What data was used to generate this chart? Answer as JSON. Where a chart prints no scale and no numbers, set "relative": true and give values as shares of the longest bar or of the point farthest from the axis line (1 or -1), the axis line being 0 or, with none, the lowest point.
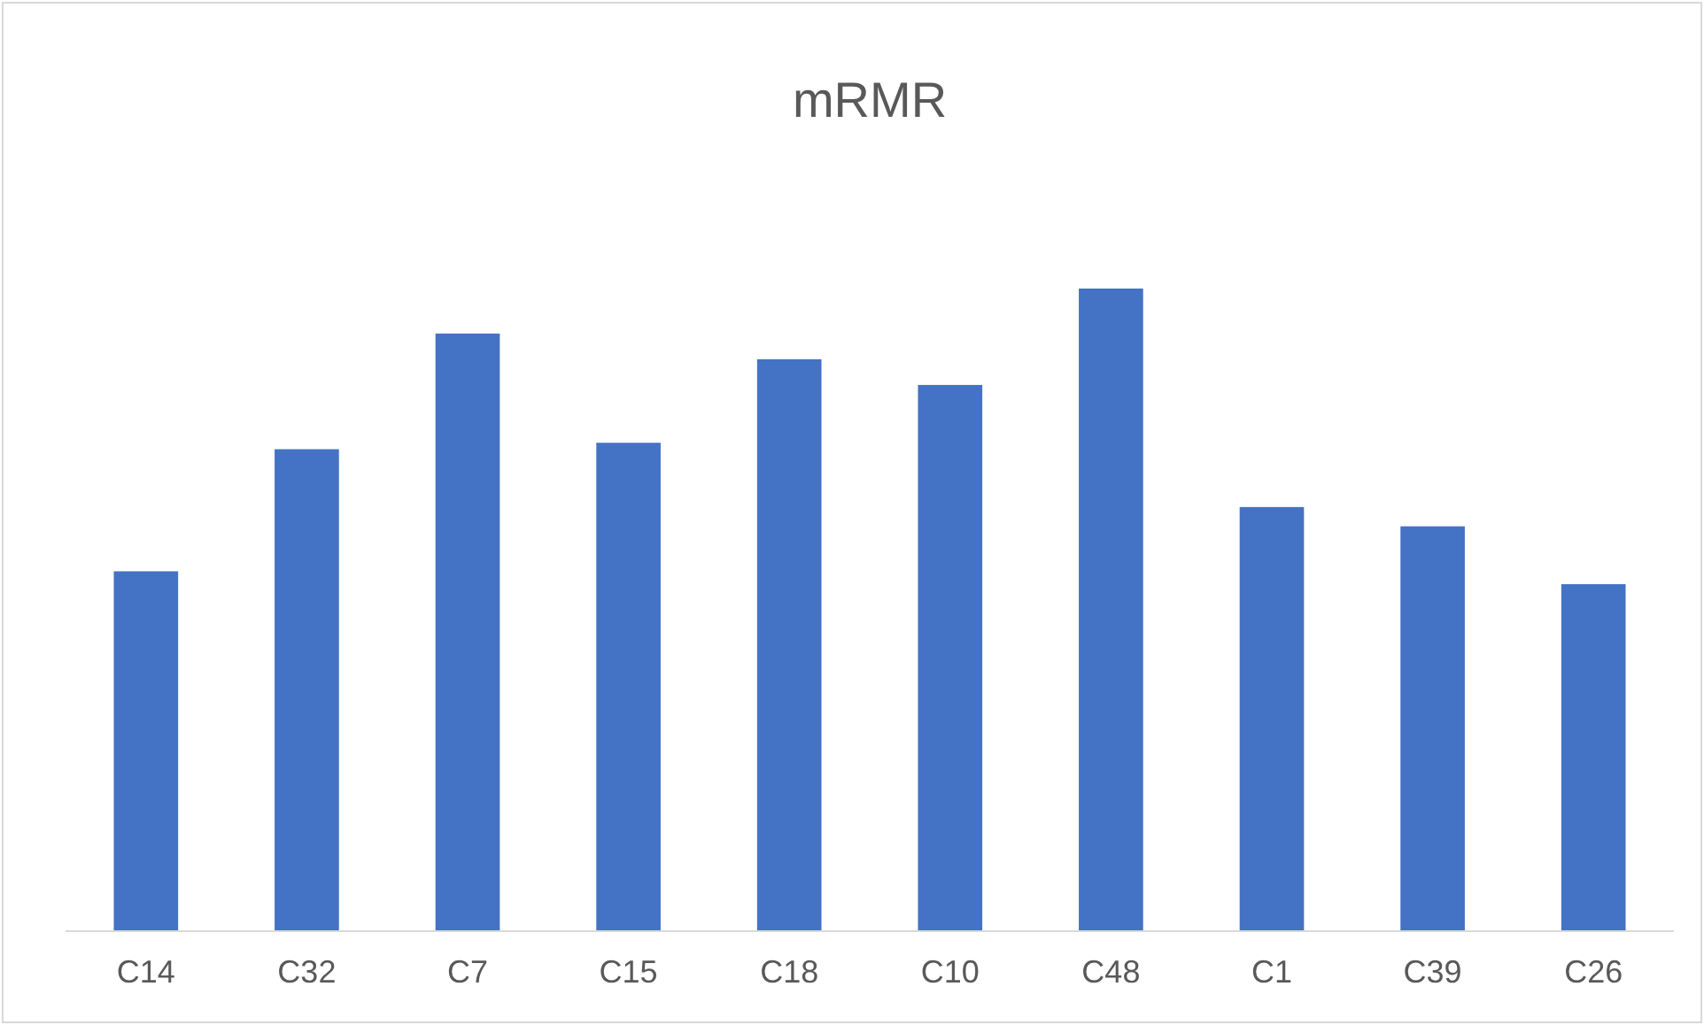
{
  "chart_data": {
    "type": "bar",
    "title": "mRMR",
    "relative": true,
    "categories": [
      "C14",
      "C32",
      "C7",
      "C15",
      "C18",
      "C10",
      "C48",
      "C1",
      "C39",
      "C26"
    ],
    "series": [
      {
        "color": "#4472c4",
        "values": [
          0.56,
          0.75,
          0.93,
          0.76,
          0.89,
          0.85,
          1,
          0.66,
          0.63,
          0.54
        ]
      }
    ],
    "grid": false
  }
}
